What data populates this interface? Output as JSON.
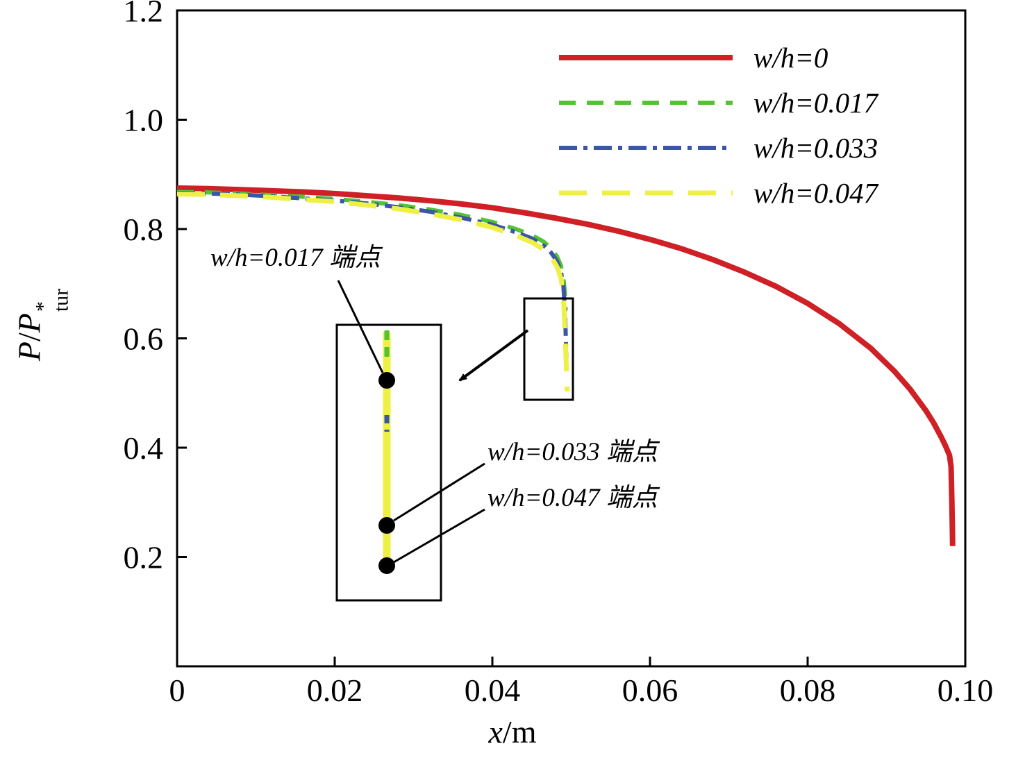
{
  "labels": {
    "xlabel": {
      "it": "x",
      "rest": "/m"
    },
    "ylabel": {
      "p1": "P",
      "slash": "/",
      "p2": "P",
      "sup": "*",
      "sub": "tur"
    }
  },
  "annotations": [
    {
      "text": "w/h=0.017 端点"
    },
    {
      "text": "w/h=0.033 端点"
    },
    {
      "text": "w/h=0.047 端点"
    }
  ],
  "chart_data": {
    "type": "line",
    "title": "",
    "xlabel": "x/m",
    "ylabel": "P/P*_tur",
    "xlim": [
      0,
      0.1
    ],
    "ylim": [
      0,
      1.2
    ],
    "grid": false,
    "legend_position": "top-right-inside",
    "xticks": [
      "0",
      "0.02",
      "0.04",
      "0.06",
      "0.08",
      "0.10"
    ],
    "xtick_values": [
      0,
      0.02,
      0.04,
      0.06,
      0.08,
      0.1
    ],
    "yticks": [
      "0.2",
      "0.4",
      "0.6",
      "0.8",
      "1.0",
      "1.2"
    ],
    "ytick_values": [
      0.2,
      0.4,
      0.6,
      0.8,
      1.0,
      1.2
    ],
    "frame_color": "#000000",
    "series": [
      {
        "name": "w/h=0",
        "color": "#cf2026",
        "style": "solid",
        "width": 8,
        "x": [
          0,
          0.004,
          0.008,
          0.012,
          0.016,
          0.02,
          0.024,
          0.028,
          0.032,
          0.036,
          0.04,
          0.044,
          0.048,
          0.052,
          0.056,
          0.06,
          0.064,
          0.068,
          0.072,
          0.076,
          0.08,
          0.084,
          0.088,
          0.091,
          0.093,
          0.095,
          0.096,
          0.097,
          0.0975,
          0.098,
          0.0982,
          0.0983,
          0.0984
        ],
        "y": [
          0.875,
          0.874,
          0.872,
          0.87,
          0.868,
          0.865,
          0.861,
          0.857,
          0.852,
          0.846,
          0.839,
          0.83,
          0.82,
          0.809,
          0.796,
          0.781,
          0.764,
          0.744,
          0.721,
          0.695,
          0.664,
          0.627,
          0.582,
          0.54,
          0.507,
          0.468,
          0.445,
          0.418,
          0.403,
          0.386,
          0.365,
          0.3,
          0.22
        ]
      },
      {
        "name": "w/h=0.017",
        "color": "#53c234",
        "style": "dashed",
        "width": 6,
        "x": [
          0,
          0.004,
          0.008,
          0.012,
          0.016,
          0.02,
          0.024,
          0.028,
          0.032,
          0.036,
          0.04,
          0.043,
          0.045,
          0.0465,
          0.0475,
          0.0482,
          0.0487,
          0.049,
          0.0492,
          0.0493
        ],
        "y": [
          0.868,
          0.867,
          0.865,
          0.862,
          0.859,
          0.855,
          0.85,
          0.844,
          0.836,
          0.826,
          0.813,
          0.8,
          0.789,
          0.777,
          0.764,
          0.75,
          0.733,
          0.712,
          0.685,
          0.652
        ]
      },
      {
        "name": "w/h=0.033",
        "color": "#3a56a5",
        "style": "dashdot",
        "width": 6,
        "x": [
          0,
          0.004,
          0.008,
          0.012,
          0.016,
          0.02,
          0.024,
          0.028,
          0.032,
          0.036,
          0.04,
          0.043,
          0.045,
          0.0465,
          0.0475,
          0.0482,
          0.0487,
          0.049,
          0.0492,
          0.0494
        ],
        "y": [
          0.866,
          0.865,
          0.863,
          0.86,
          0.856,
          0.852,
          0.847,
          0.84,
          0.832,
          0.821,
          0.808,
          0.794,
          0.783,
          0.77,
          0.756,
          0.741,
          0.722,
          0.698,
          0.655,
          0.565
        ]
      },
      {
        "name": "w/h=0.047",
        "color": "#eef044",
        "style": "longdash",
        "width": 7,
        "x": [
          0,
          0.004,
          0.008,
          0.012,
          0.016,
          0.02,
          0.024,
          0.028,
          0.032,
          0.036,
          0.04,
          0.043,
          0.045,
          0.0465,
          0.0475,
          0.0482,
          0.0487,
          0.049,
          0.0492,
          0.0495
        ],
        "y": [
          0.864,
          0.863,
          0.861,
          0.858,
          0.854,
          0.85,
          0.844,
          0.837,
          0.828,
          0.817,
          0.803,
          0.788,
          0.776,
          0.763,
          0.748,
          0.731,
          0.71,
          0.682,
          0.62,
          0.503
        ]
      }
    ],
    "inset": {
      "description": "zoomed view of dashed-curve endpoints near x=0.049",
      "endpoints": [
        {
          "series": "w/h=0.017",
          "x": 0.0493,
          "y": 0.652
        },
        {
          "series": "w/h=0.033",
          "x": 0.0494,
          "y": 0.565
        },
        {
          "series": "w/h=0.047",
          "x": 0.0495,
          "y": 0.503
        }
      ]
    }
  }
}
